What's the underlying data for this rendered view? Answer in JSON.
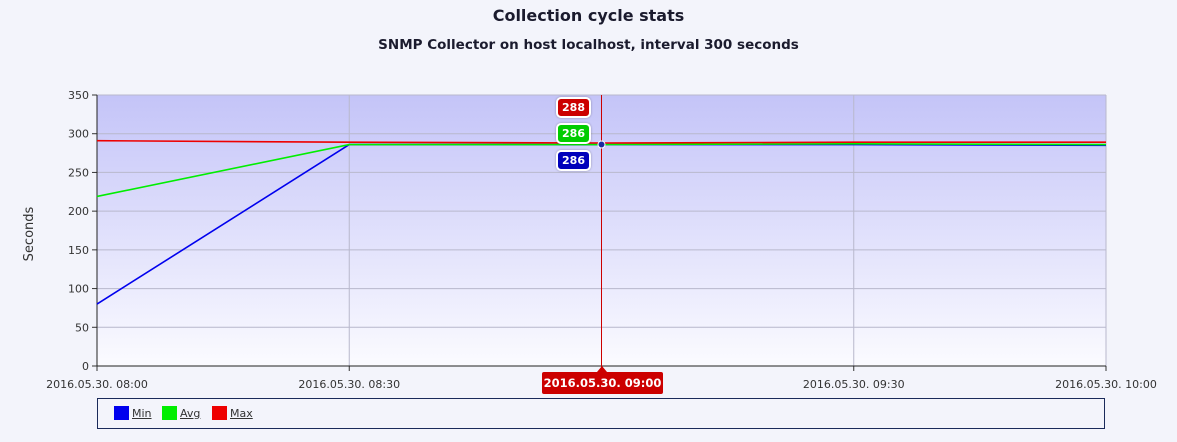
{
  "chart_data": {
    "type": "line",
    "title": "Collection cycle stats",
    "subtitle": "SNMP Collector on host localhost, interval 300 seconds",
    "ylabel": "Seconds",
    "xlabel": "",
    "ylim": [
      0,
      350
    ],
    "yticks": [
      0,
      50,
      100,
      150,
      200,
      250,
      300,
      350
    ],
    "x_tick_labels": [
      "2016.05.30. 08:00",
      "2016.05.30. 08:30",
      "2016.05.30. 09:00",
      "2016.05.30. 09:30",
      "2016.05.30. 10:00"
    ],
    "x": [
      "2016.05.30. 08:00",
      "2016.05.30. 08:30",
      "2016.05.30. 09:00",
      "2016.05.30. 09:30",
      "2016.05.30. 10:00"
    ],
    "series": [
      {
        "name": "Min",
        "color": "#0000ee",
        "values": [
          80,
          286,
          286,
          286,
          285
        ]
      },
      {
        "name": "Avg",
        "color": "#00ee00",
        "values": [
          219,
          286,
          286,
          287,
          286
        ]
      },
      {
        "name": "Max",
        "color": "#ee0000",
        "values": [
          291,
          289,
          288,
          289,
          289
        ]
      }
    ],
    "grid": true,
    "legend_position": "bottom",
    "crosshair": {
      "x_label": "2016.05.30. 09:00",
      "values": {
        "max": "288",
        "avg": "286",
        "min": "286"
      },
      "colors": {
        "max": "#cc0000",
        "avg": "#00cc00",
        "min": "#0000bb"
      }
    }
  }
}
